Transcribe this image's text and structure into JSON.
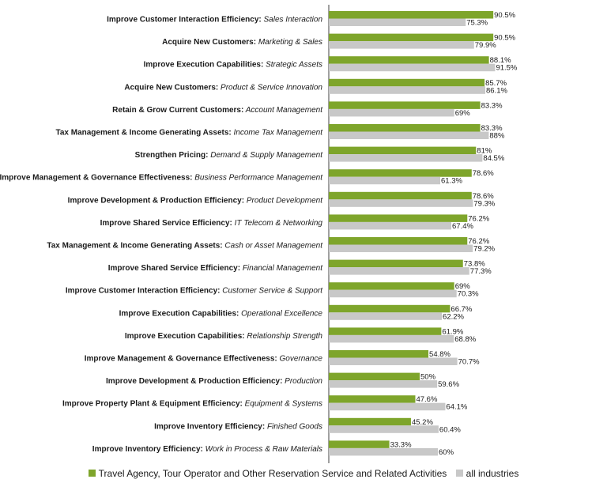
{
  "chart_data": {
    "type": "bar",
    "orientation": "horizontal",
    "xlim": [
      0,
      100
    ],
    "grid": false,
    "legend_position": "bottom",
    "categories": [
      {
        "group": "Improve Customer Interaction Efficiency",
        "area": "Sales Interaction"
      },
      {
        "group": "Acquire New Customers",
        "area": "Marketing & Sales"
      },
      {
        "group": "Improve Execution Capabilities",
        "area": "Strategic Assets"
      },
      {
        "group": "Acquire New Customers",
        "area": "Product & Service Innovation"
      },
      {
        "group": "Retain & Grow Current Customers",
        "area": "Account Management"
      },
      {
        "group": "Tax Management & Income Generating Assets",
        "area": "Income Tax Management"
      },
      {
        "group": "Strengthen Pricing",
        "area": "Demand & Supply Management"
      },
      {
        "group": "Improve Management & Governance Effectiveness",
        "area": "Business Performance Management"
      },
      {
        "group": "Improve Development & Production Efficiency",
        "area": "Product Development"
      },
      {
        "group": "Improve Shared Service Efficiency",
        "area": "IT Telecom & Networking"
      },
      {
        "group": "Tax Management & Income Generating Assets",
        "area": "Cash or Asset Management"
      },
      {
        "group": "Improve Shared Service Efficiency",
        "area": "Financial Management"
      },
      {
        "group": "Improve Customer Interaction Efficiency",
        "area": "Customer Service & Support"
      },
      {
        "group": "Improve Execution Capabilities",
        "area": "Operational Excellence"
      },
      {
        "group": "Improve Execution Capabilities",
        "area": "Relationship Strength"
      },
      {
        "group": "Improve Management & Governance Effectiveness",
        "area": "Governance"
      },
      {
        "group": "Improve Development & Production Efficiency",
        "area": "Production"
      },
      {
        "group": "Improve Property Plant & Equipment Efficiency",
        "area": "Equipment & Systems"
      },
      {
        "group": "Improve Inventory Efficiency",
        "area": "Finished Goods"
      },
      {
        "group": "Improve Inventory Efficiency",
        "area": "Work in Process & Raw Materials"
      }
    ],
    "series": [
      {
        "name": "Travel Agency, Tour Operator and Other Reservation Service and Related Activities",
        "color": "#7ea52b",
        "values": [
          90.5,
          90.5,
          88.1,
          85.7,
          83.3,
          83.3,
          81,
          78.6,
          78.6,
          76.2,
          76.2,
          73.8,
          69,
          66.7,
          61.9,
          54.8,
          50,
          47.6,
          45.2,
          33.3
        ],
        "labels": [
          "90.5%",
          "90.5%",
          "88.1%",
          "85.7%",
          "83.3%",
          "83.3%",
          "81%",
          "78.6%",
          "78.6%",
          "76.2%",
          "76.2%",
          "73.8%",
          "69%",
          "66.7%",
          "61.9%",
          "54.8%",
          "50%",
          "47.6%",
          "45.2%",
          "33.3%"
        ]
      },
      {
        "name": "all industries",
        "color": "#c8c8c8",
        "values": [
          75.3,
          79.9,
          91.5,
          86.1,
          69,
          88,
          84.5,
          61.3,
          79.3,
          67.4,
          79.2,
          77.3,
          70.3,
          62.2,
          68.8,
          70.7,
          59.6,
          64.1,
          60.4,
          60
        ],
        "labels": [
          "75.3%",
          "79.9%",
          "91.5%",
          "86.1%",
          "69%",
          "88%",
          "84.5%",
          "61.3%",
          "79.3%",
          "67.4%",
          "79.2%",
          "77.3%",
          "70.3%",
          "62.2%",
          "68.8%",
          "70.7%",
          "59.6%",
          "64.1%",
          "60.4%",
          "60%"
        ]
      }
    ]
  }
}
